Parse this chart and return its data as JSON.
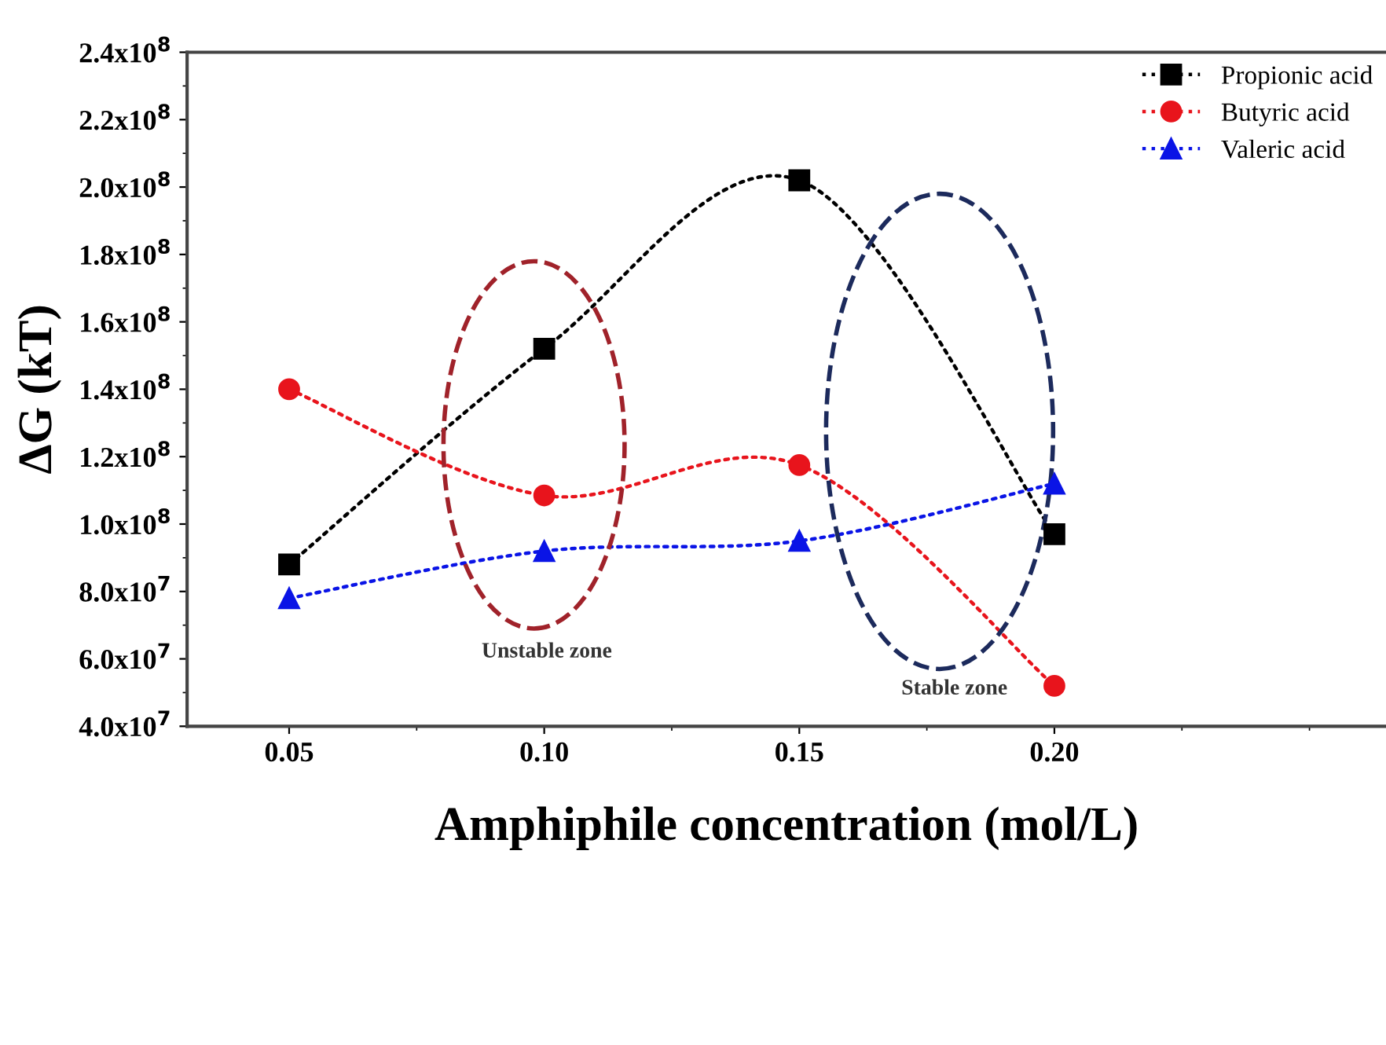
{
  "chart_data": {
    "type": "line",
    "xlabel": "Amphiphile concentration (mol/L)",
    "ylabel": "ΔG (kT)",
    "x": [
      0.05,
      0.1,
      0.15,
      0.2
    ],
    "series": [
      {
        "name": "Propionic acid",
        "color": "#000000",
        "marker": "square",
        "values": [
          88000000,
          152000000,
          202000000,
          97000000
        ]
      },
      {
        "name": "Butyric acid",
        "color": "#e8141c",
        "marker": "circle",
        "values": [
          140000000,
          108500000,
          117500000,
          52000000
        ]
      },
      {
        "name": "Valeric acid",
        "color": "#0a14e6",
        "marker": "triangle",
        "values": [
          78000000,
          92000000,
          95000000,
          112000000
        ]
      }
    ],
    "xlim": [
      0.03,
      0.265
    ],
    "xticks": [
      {
        "value": 0.05,
        "label": "0.05"
      },
      {
        "value": 0.1,
        "label": "0.10"
      },
      {
        "value": 0.15,
        "label": "0.15"
      },
      {
        "value": 0.2,
        "label": "0.20"
      }
    ],
    "ylim": [
      40000000,
      240000000
    ],
    "yticks": [
      {
        "value": 40000000,
        "label": "4.0x10$^{7}$"
      },
      {
        "value": 60000000,
        "label": "6.0x10$^{7}$"
      },
      {
        "value": 80000000,
        "label": "8.0x10$^{7}$"
      },
      {
        "value": 100000000,
        "label": "1.0x10$^{8}$"
      },
      {
        "value": 120000000,
        "label": "1.2x10$^{8}$"
      },
      {
        "value": 140000000,
        "label": "1.4x10$^{8}$"
      },
      {
        "value": 160000000,
        "label": "1.6x10$^{8}$"
      },
      {
        "value": 180000000,
        "label": "1.8x10$^{8}$"
      },
      {
        "value": 200000000,
        "label": "2.0x10$^{8}$"
      },
      {
        "value": 220000000,
        "label": "2.2x10$^{8}$"
      },
      {
        "value": 240000000,
        "label": "2.4x10$^{8}$"
      }
    ],
    "annotations": [
      "Unstable zone",
      "Stable zone"
    ],
    "line_style": "dotted",
    "legend": "top right",
    "grid": false
  }
}
